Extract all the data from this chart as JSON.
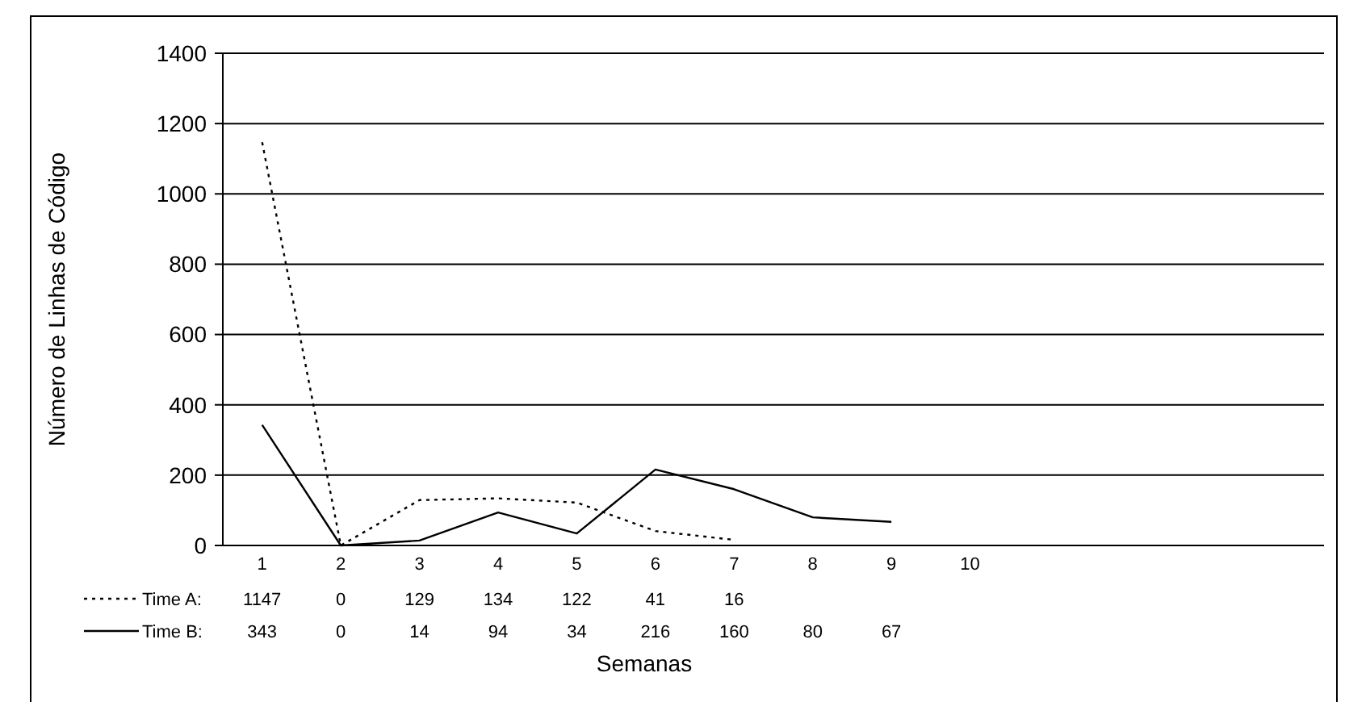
{
  "chart_data": {
    "type": "line",
    "xlabel": "Semanas",
    "ylabel": "Número de Linhas de Código",
    "categories": [
      "1",
      "2",
      "3",
      "4",
      "5",
      "6",
      "7",
      "8",
      "9",
      "10",
      null,
      null,
      null,
      null
    ],
    "series": [
      {
        "name": "Time A:",
        "color": "#000000",
        "line_style": "dotted",
        "values": [
          1147,
          0,
          129,
          134,
          122,
          41,
          16,
          null,
          null,
          null,
          null,
          null,
          null,
          null
        ]
      },
      {
        "name": "Time B:",
        "color": "#000000",
        "line_style": "solid",
        "values": [
          343,
          0,
          14,
          94,
          34,
          216,
          160,
          80,
          67,
          null,
          null,
          null,
          null,
          null
        ]
      }
    ],
    "ylim": [
      0,
      1400
    ],
    "yticks": [
      0,
      200,
      400,
      600,
      800,
      1000,
      1200,
      1400
    ],
    "grid": "y",
    "data_labels": true,
    "legend": "bottom left",
    "marker": "none"
  }
}
